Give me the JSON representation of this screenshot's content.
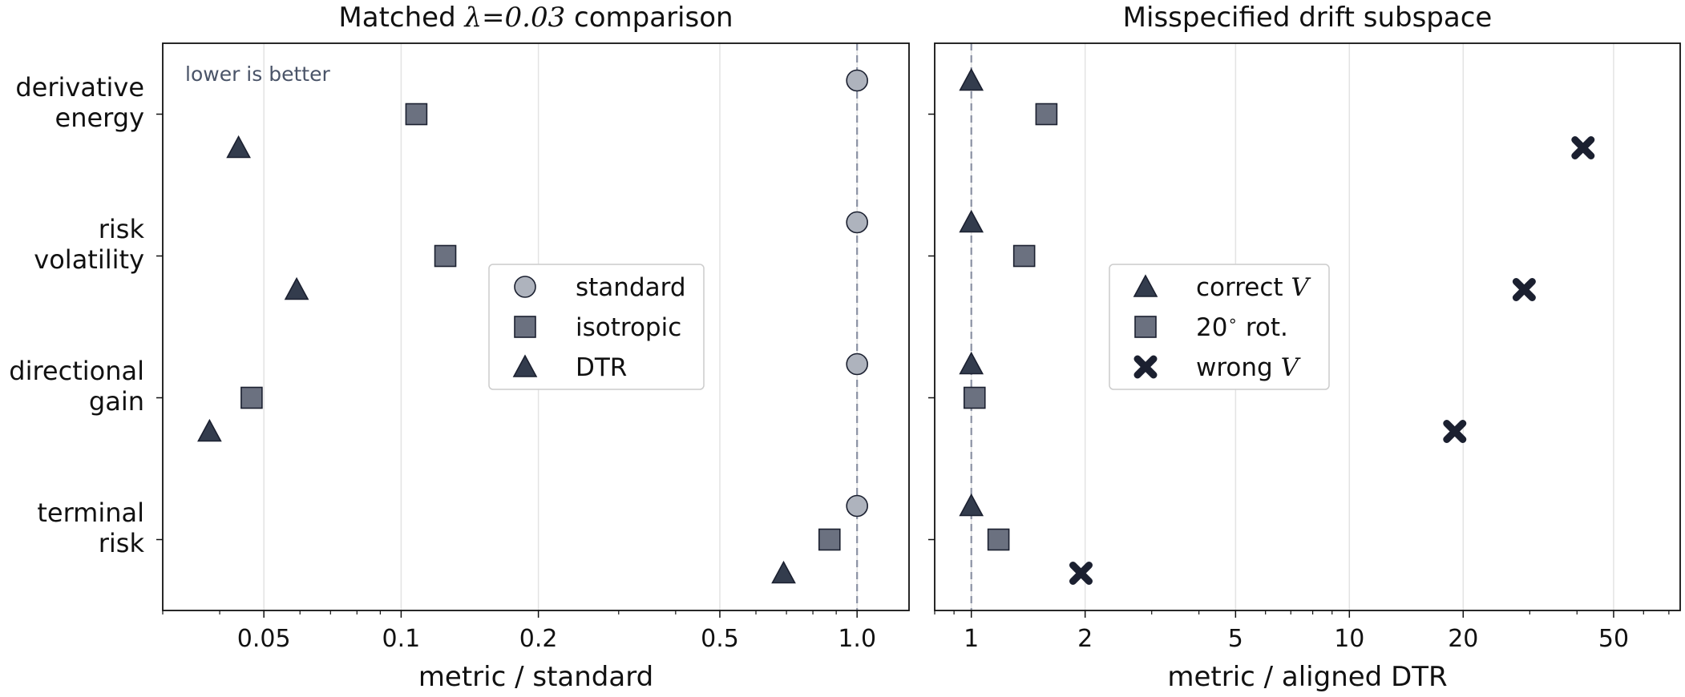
{
  "chart_data": [
    {
      "type": "scatter",
      "title": {
        "pre": "Matched ",
        "lambda": "λ",
        "eq": "=0.03",
        "post": " comparison"
      },
      "xlabel": "metric / standard",
      "xscale": "log",
      "xlim": [
        0.03,
        1.3
      ],
      "xticks": [
        {
          "value": 0.05,
          "label": "0.05"
        },
        {
          "value": 0.1,
          "label": "0.1"
        },
        {
          "value": 0.2,
          "label": "0.2"
        },
        {
          "value": 0.5,
          "label": "0.5"
        },
        {
          "value": 1.0,
          "label": "1.0"
        }
      ],
      "categories": [
        "derivative\nenergy",
        "risk\nvolatility",
        "directional\ngain",
        "terminal\nrisk"
      ],
      "reference_line": 1.0,
      "annotation": "lower is better",
      "grid": true,
      "legend_position": "center-right",
      "series": [
        {
          "name": "standard",
          "marker": "circle",
          "color": "#aeb3bd",
          "values": [
            1.0,
            1.0,
            1.0,
            1.0
          ]
        },
        {
          "name": "isotropic",
          "marker": "square",
          "color": "#6b7180",
          "values": [
            0.108,
            0.125,
            0.047,
            0.87
          ]
        },
        {
          "name": "DTR",
          "marker": "triangle",
          "color": "#333c4d",
          "values": [
            0.044,
            0.059,
            0.038,
            0.69
          ]
        }
      ]
    },
    {
      "type": "scatter",
      "title": "Misspecified drift subspace",
      "xlabel": "metric / aligned DTR",
      "xscale": "log",
      "xlim": [
        0.8,
        75
      ],
      "xticks": [
        {
          "value": 1,
          "label": "1"
        },
        {
          "value": 2,
          "label": "2"
        },
        {
          "value": 5,
          "label": "5"
        },
        {
          "value": 10,
          "label": "10"
        },
        {
          "value": 20,
          "label": "20"
        },
        {
          "value": 50,
          "label": "50"
        }
      ],
      "categories": [
        "derivative energy",
        "risk volatility",
        "directional gain",
        "terminal risk"
      ],
      "reference_line": 1.0,
      "grid": true,
      "legend_position": "center-right",
      "series": [
        {
          "name": "correct V",
          "label": "correct ",
          "label_italic": "V",
          "marker": "triangle",
          "color": "#333c4d",
          "values": [
            1.0,
            1.0,
            1.0,
            1.0
          ]
        },
        {
          "name": "20° rot.",
          "label": "20",
          "label_sup": "∘",
          "label_post": " rot.",
          "marker": "square",
          "color": "#6b7180",
          "values": [
            1.58,
            1.38,
            1.02,
            1.18
          ]
        },
        {
          "name": "wrong V",
          "label": "wrong ",
          "label_italic": "V",
          "marker": "x",
          "color": "#1b2030",
          "values": [
            41.5,
            29.0,
            19.0,
            1.95
          ]
        }
      ]
    }
  ]
}
